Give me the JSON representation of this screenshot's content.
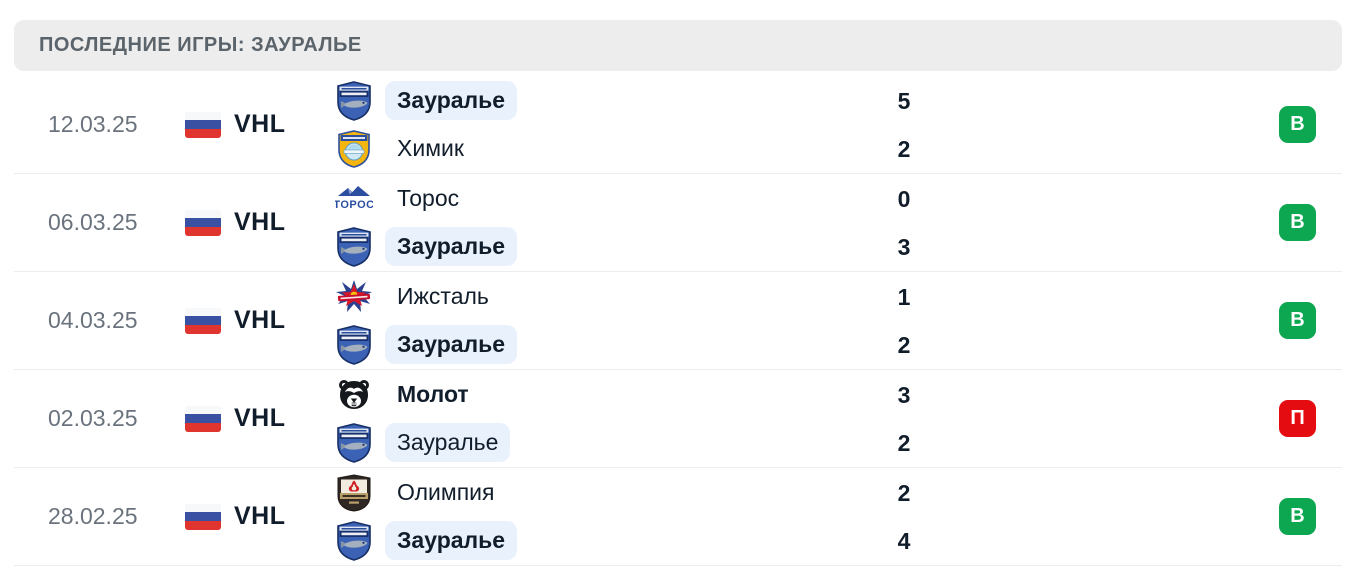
{
  "header": {
    "title": "ПОСЛЕДНИЕ ИГРЫ: ЗАУРАЛЬЕ"
  },
  "colors": {
    "win": "#0ca750",
    "loss": "#e40b11",
    "highlight": "#e9f1fd",
    "text_navy": "#111d2b",
    "date_gray": "#6a737d",
    "header_bg": "#ededed"
  },
  "matches": [
    {
      "date": "12.03.25",
      "league": "VHL",
      "flag": "russia-flag",
      "teams": [
        {
          "name": "Зауралье",
          "logo": "zauralye-logo",
          "highlighted": true,
          "bold": true
        },
        {
          "name": "Химик",
          "logo": "khimik-logo",
          "highlighted": false,
          "bold": false
        }
      ],
      "score": [
        "5",
        "2"
      ],
      "result": {
        "label": "В",
        "type": "win"
      }
    },
    {
      "date": "06.03.25",
      "league": "VHL",
      "flag": "russia-flag",
      "teams": [
        {
          "name": "Торос",
          "logo": "toros-logo",
          "highlighted": false,
          "bold": false
        },
        {
          "name": "Зауралье",
          "logo": "zauralye-logo",
          "highlighted": true,
          "bold": true
        }
      ],
      "score": [
        "0",
        "3"
      ],
      "result": {
        "label": "В",
        "type": "win"
      }
    },
    {
      "date": "04.03.25",
      "league": "VHL",
      "flag": "russia-flag",
      "teams": [
        {
          "name": "Ижсталь",
          "logo": "izhstal-logo",
          "highlighted": false,
          "bold": false
        },
        {
          "name": "Зауралье",
          "logo": "zauralye-logo",
          "highlighted": true,
          "bold": true
        }
      ],
      "score": [
        "1",
        "2"
      ],
      "result": {
        "label": "В",
        "type": "win"
      }
    },
    {
      "date": "02.03.25",
      "league": "VHL",
      "flag": "russia-flag",
      "teams": [
        {
          "name": "Молот",
          "logo": "molot-logo",
          "highlighted": false,
          "bold": true
        },
        {
          "name": "Зауралье",
          "logo": "zauralye-logo",
          "highlighted": true,
          "bold": false
        }
      ],
      "score": [
        "3",
        "2"
      ],
      "result": {
        "label": "П",
        "type": "loss"
      }
    },
    {
      "date": "28.02.25",
      "league": "VHL",
      "flag": "russia-flag",
      "teams": [
        {
          "name": "Олимпия",
          "logo": "olimpia-logo",
          "highlighted": false,
          "bold": false
        },
        {
          "name": "Зауралье",
          "logo": "zauralye-logo",
          "highlighted": true,
          "bold": true
        }
      ],
      "score": [
        "2",
        "4"
      ],
      "result": {
        "label": "В",
        "type": "win"
      }
    }
  ]
}
